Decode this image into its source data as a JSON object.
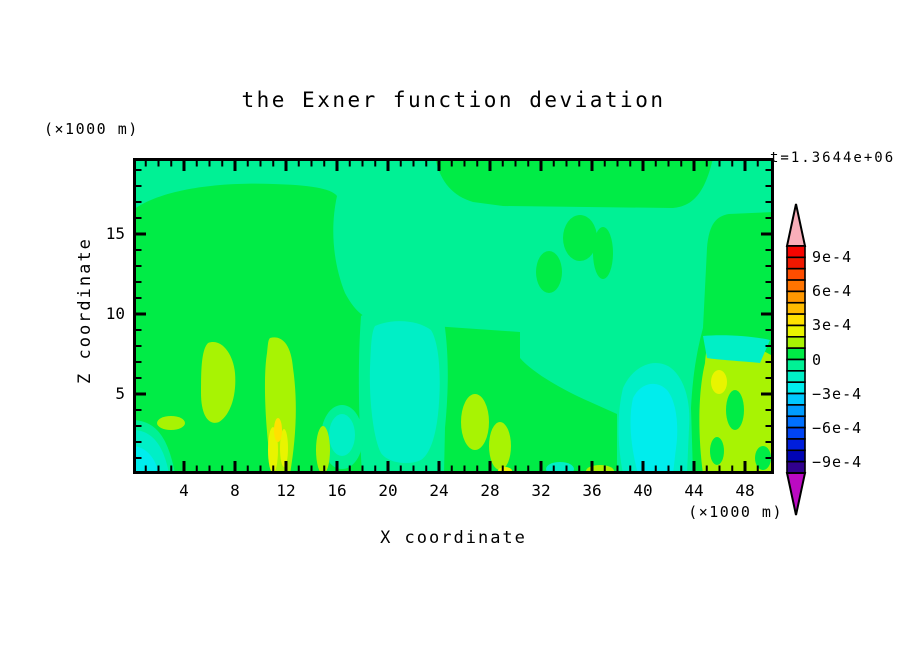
{
  "figure": {
    "title": "the Exner function deviation",
    "timestamp": "t=1.3644e+06",
    "x_axis": {
      "label": "X coordinate",
      "unit_note": "(×1000 m)",
      "tick_labels": [
        4,
        8,
        12,
        16,
        20,
        24,
        28,
        32,
        36,
        40,
        44,
        48
      ]
    },
    "z_axis": {
      "label": "Z coordinate",
      "unit_note": "(×1000 m)",
      "tick_labels": [
        5,
        10,
        15
      ]
    },
    "colorbar": {
      "tick_labels": [
        "9e-4",
        "6e-4",
        "3e-4",
        "0",
        "−3e-4",
        "−6e-4",
        "−9e-4"
      ],
      "boundary_index": [
        1,
        4,
        7,
        10,
        13,
        16,
        19
      ],
      "over_color": "#F9AEB9",
      "under_color": "#BB0AC2",
      "cell_colors_top_to_bottom": [
        "#F60400",
        "#F01800",
        "#FF4D00",
        "#FF7400",
        "#FF9800",
        "#FFBC00",
        "#FFE100",
        "#E9F400",
        "#A8F303",
        "#00EC46",
        "#00F195",
        "#00EFC6",
        "#00EDED",
        "#00C8FF",
        "#009CFF",
        "#0070FF",
        "#0044F4",
        "#001EDC",
        "#0004B4",
        "#31018E"
      ]
    }
  },
  "plot_colors": {
    "green": "#00EC46",
    "mint": "#00F195",
    "aquamarine": "#00EFC6",
    "cyan": "#00EDED",
    "chartreuse": "#A8F303",
    "yellow": "#E9F400",
    "gold": "#FFE100",
    "frame": "#000000"
  },
  "chart_data": {
    "type": "heatmap",
    "subtype": "filled-contour",
    "title": "the Exner function deviation",
    "xlabel": "X coordinate",
    "ylabel": "Z coordinate",
    "x_unit_note": "(×1000 m)",
    "z_unit_note": "(×1000 m)",
    "timestamp": "t=1.3644e+06",
    "xlim": [
      0,
      50.3
    ],
    "zlim": [
      0,
      19.8
    ],
    "x_labeled_ticks": [
      4,
      8,
      12,
      16,
      20,
      24,
      28,
      32,
      36,
      40,
      44,
      48
    ],
    "z_labeled_ticks": [
      5,
      10,
      15
    ],
    "minor_tick_step": 1,
    "grid": false,
    "legend_position": "right-colorbar",
    "contour_interval": 0.0001,
    "colorbar_labeled_levels": [
      0.0009,
      0.0006,
      0.0003,
      0,
      -0.0003,
      -0.0006,
      -0.0009
    ],
    "colorbar_range": [
      -0.001,
      0.001
    ],
    "features": [
      {
        "region": "background upper half and mid-right",
        "x_km": [
          0,
          50
        ],
        "z_km": [
          8,
          20
        ],
        "value_band": "-1e-4 to 0",
        "color_key": "mint"
      },
      {
        "region": "large positive anomaly, left/center",
        "x_km": [
          0.3,
          16.5
        ],
        "z_km": [
          2,
          18
        ],
        "value_band": "0 to 1e-4",
        "color_key": "green"
      },
      {
        "region": "positive band along top",
        "x_km": [
          24,
          45.5
        ],
        "z_km": [
          16.7,
          19.8
        ],
        "value_band": "0 to 1e-4",
        "color_key": "green"
      },
      {
        "region": "positive column along right edge",
        "x_km": [
          44.5,
          50.3
        ],
        "z_km": [
          0,
          16.3
        ],
        "value_band": "0 to 1e-4",
        "color_key": "green"
      },
      {
        "region": "small positive blobs aloft",
        "x_km": [
          32,
          38
        ],
        "z_km": [
          12,
          16
        ],
        "value_band": "0 to 1e-4",
        "color_key": "green"
      },
      {
        "region": "surface plumes of stronger positive deviation",
        "x_km": [
          5,
          14.5
        ],
        "z_km": [
          0,
          8.5
        ],
        "value_band": "1e-4 to 3e-4",
        "color_key": "chartreuse"
      },
      {
        "region": "strongest surface plume cores",
        "x_km": [
          10.5,
          12.5
        ],
        "z_km": [
          0,
          3.5
        ],
        "value_band": "3e-4 to 5e-4",
        "color_key": "yellow/gold"
      },
      {
        "region": "positive cluster near surface, right",
        "x_km": [
          44.5,
          50
        ],
        "z_km": [
          0,
          8.6
        ],
        "value_band": "1e-4 to 3e-4",
        "color_key": "chartreuse"
      },
      {
        "region": "central negative trough",
        "x_km": [
          18.5,
          24
        ],
        "z_km": [
          0,
          10
        ],
        "value_band": "-2e-4 to -1e-4",
        "color_key": "aquamarine"
      },
      {
        "region": "negative blob with cyan core",
        "x_km": [
          38,
          44
        ],
        "z_km": [
          0,
          7
        ],
        "value_band": "-3e-4 to -2e-4 core",
        "color_key": "cyan"
      },
      {
        "region": "negative pocket bottom-left corner",
        "x_km": [
          0,
          3
        ],
        "z_km": [
          0,
          2.7
        ],
        "value_band": "-3e-4 to -2e-4 core",
        "color_key": "cyan"
      },
      {
        "region": "negative wedge",
        "x_km": [
          44.7,
          50
        ],
        "z_km": [
          7,
          8.7
        ],
        "value_band": "-2e-4 to -1e-4",
        "color_key": "aquamarine"
      }
    ]
  }
}
